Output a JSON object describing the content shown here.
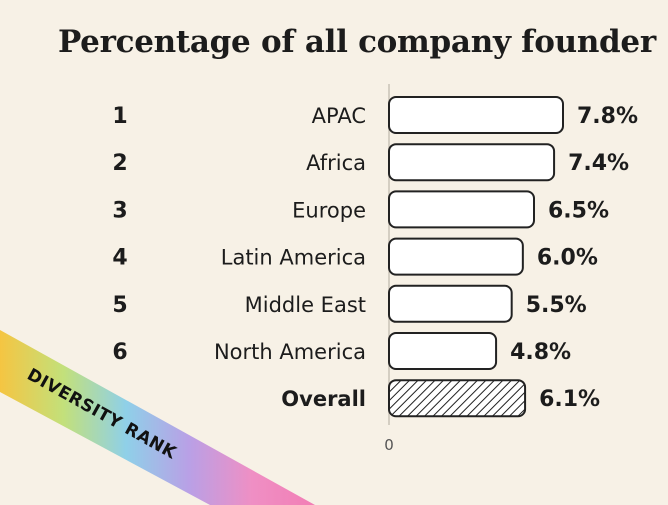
{
  "chart_data": {
    "type": "bar",
    "orientation": "horizontal",
    "title": "Percentage of all company founder",
    "ranks": [
      "1",
      "2",
      "3",
      "4",
      "5",
      "6",
      ""
    ],
    "categories": [
      "APAC",
      "Africa",
      "Europe",
      "Latin America",
      "Middle East",
      "North America",
      "Overall"
    ],
    "values": [
      7.8,
      7.4,
      6.5,
      6.0,
      5.5,
      4.8,
      6.1
    ],
    "value_labels": [
      "7.8%",
      "7.4%",
      "6.5%",
      "6.0%",
      "5.5%",
      "4.8%",
      "6.1%"
    ],
    "highlight": {
      "category": "Overall",
      "style": "hatched"
    },
    "x_tick_labels": [
      "0"
    ],
    "xlim": [
      0,
      7.8
    ],
    "grid": false,
    "ribbon_label": "DIVERSITY RANK",
    "colors": {
      "background": "#f7f1e6",
      "bar_fill": "#ffffff",
      "bar_stroke": "#222222",
      "ribbon_gradient": [
        "#f5c542",
        "#c3e07a",
        "#8fd0e8",
        "#b9a0e6",
        "#ef8fc4",
        "#f27eb5"
      ]
    }
  }
}
